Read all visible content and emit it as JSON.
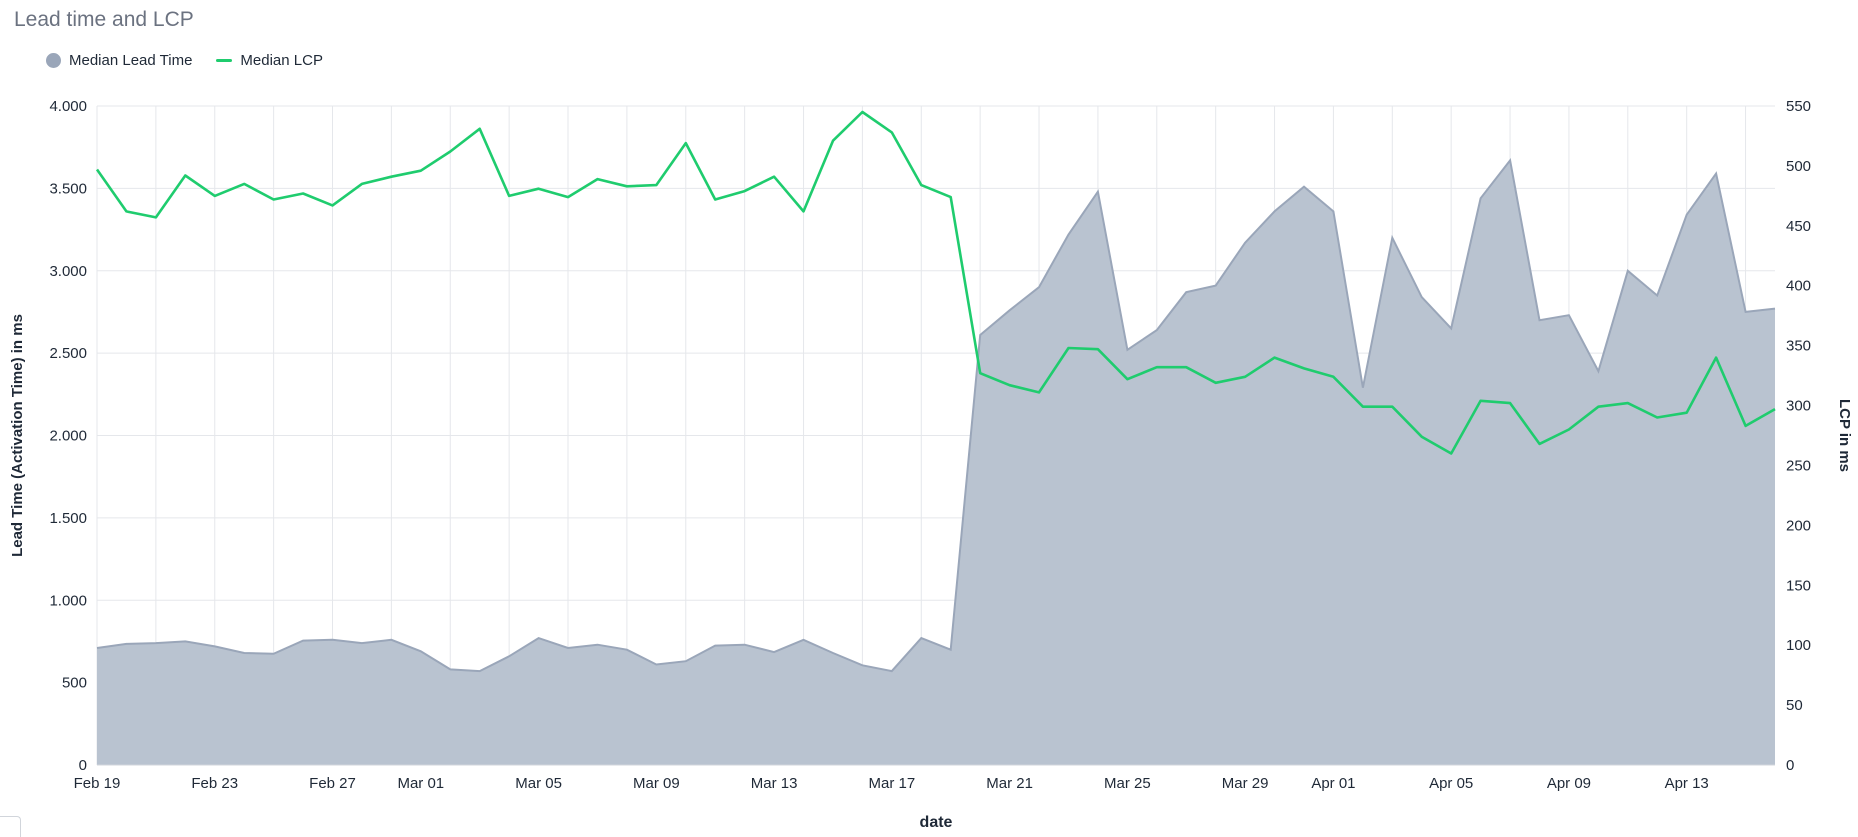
{
  "colors": {
    "lead_time": "#9aa6b9",
    "lead_time_fill": "#b9c3d0",
    "lcp": "#1fcc6e",
    "grid": "#e5e7eb",
    "title": "#6b7280"
  },
  "panel": {
    "title": "Lead time and LCP"
  },
  "chart_data": {
    "type": "area",
    "title": "Lead time and LCP",
    "xlabel": "date",
    "ylabel_left": "Lead Time (Activation Time) in ms",
    "ylabel_right": "LCP in ms",
    "ylim_left": [
      0,
      4000
    ],
    "ylim_right": [
      0,
      550
    ],
    "yticks_left": [
      0,
      500,
      1000,
      1500,
      2000,
      2500,
      3000,
      3500,
      4000
    ],
    "yticks_left_labels": [
      "0",
      "500",
      "1.000",
      "1.500",
      "2.000",
      "2.500",
      "3.000",
      "3.500",
      "4.000"
    ],
    "yticks_right": [
      0,
      50,
      100,
      150,
      200,
      250,
      300,
      350,
      400,
      450,
      500,
      550
    ],
    "yticks_right_labels": [
      "0",
      "50",
      "100",
      "150",
      "200",
      "250",
      "300",
      "350",
      "400",
      "450",
      "500",
      "550"
    ],
    "x_start": "2024-02-19",
    "xticks_labels": [
      "Feb 19",
      "Feb 23",
      "Feb 27",
      "Mar 01",
      "Mar 05",
      "Mar 09",
      "Mar 13",
      "Mar 17",
      "Mar 21",
      "Mar 25",
      "Mar 29",
      "Apr 01",
      "Apr 05",
      "Apr 09",
      "Apr 13"
    ],
    "xticks_dates": [
      "2024-02-19",
      "2024-02-23",
      "2024-02-27",
      "2024-03-01",
      "2024-03-05",
      "2024-03-09",
      "2024-03-13",
      "2024-03-17",
      "2024-03-21",
      "2024-03-25",
      "2024-03-29",
      "2024-04-01",
      "2024-04-05",
      "2024-04-09",
      "2024-04-13"
    ],
    "grid": true,
    "legend": "top-left",
    "series": [
      {
        "name": "Median Lead Time",
        "type": "area",
        "axis": "left",
        "values": [
          710,
          735,
          740,
          750,
          720,
          680,
          675,
          755,
          760,
          740,
          760,
          690,
          580,
          570,
          660,
          770,
          710,
          730,
          700,
          610,
          630,
          725,
          730,
          685,
          760,
          680,
          605,
          570,
          770,
          700,
          2610,
          2760,
          2900,
          3220,
          3480,
          2520,
          2640,
          2870,
          2910,
          3170,
          3360,
          3510,
          3360,
          2290,
          3200,
          2840,
          2650,
          3440,
          3670,
          2700,
          2730,
          2390,
          3000,
          2850,
          3340,
          3590,
          2750,
          2770
        ]
      },
      {
        "name": "Median LCP",
        "type": "line",
        "axis": "right",
        "values": [
          497,
          462,
          457,
          492,
          475,
          485,
          472,
          477,
          467,
          485,
          491,
          496,
          512,
          531,
          475,
          481,
          474,
          489,
          483,
          484,
          519,
          472,
          479,
          491,
          462,
          521,
          545,
          528,
          484,
          474,
          327,
          317,
          311,
          348,
          347,
          322,
          332,
          332,
          319,
          324,
          340,
          331,
          324,
          299,
          299,
          274,
          260,
          304,
          302,
          268,
          280,
          299,
          302,
          290,
          294,
          340,
          283,
          297
        ]
      }
    ]
  }
}
